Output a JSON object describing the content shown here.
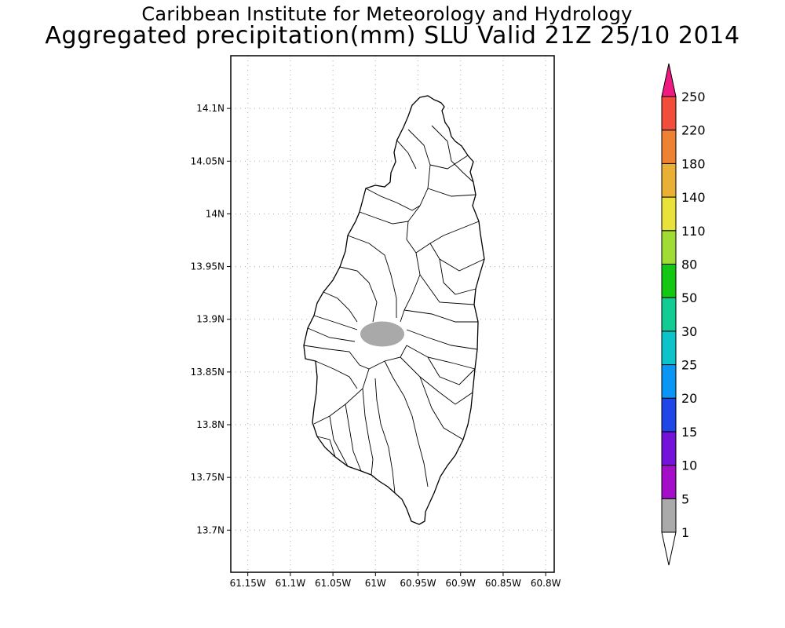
{
  "title": {
    "line1": "Caribbean Institute for Meteorology and Hydrology",
    "line2": "Aggregated precipitation(mm) SLU Valid 21Z 25/10 2014"
  },
  "map": {
    "lon_range": [
      -61.17,
      -60.79
    ],
    "lat_range": [
      13.66,
      14.15
    ],
    "x_ticks": [
      {
        "value": -61.15,
        "label": "61.15W"
      },
      {
        "value": -61.1,
        "label": "61.1W"
      },
      {
        "value": -61.05,
        "label": "61.05W"
      },
      {
        "value": -61.0,
        "label": "61W"
      },
      {
        "value": -60.95,
        "label": "60.95W"
      },
      {
        "value": -60.9,
        "label": "60.9W"
      },
      {
        "value": -60.85,
        "label": "60.85W"
      },
      {
        "value": -60.8,
        "label": "60.8W"
      }
    ],
    "y_ticks": [
      {
        "value": 14.1,
        "label": "14.1N"
      },
      {
        "value": 14.05,
        "label": "14.05N"
      },
      {
        "value": 14.0,
        "label": "14N"
      },
      {
        "value": 13.95,
        "label": "13.95N"
      },
      {
        "value": 13.9,
        "label": "13.9N"
      },
      {
        "value": 13.85,
        "label": "13.85N"
      },
      {
        "value": 13.8,
        "label": "13.8N"
      },
      {
        "value": 13.75,
        "label": "13.75N"
      },
      {
        "value": 13.7,
        "label": "13.7N"
      }
    ],
    "grid": "dotted",
    "rain_area": {
      "center_lon": -60.992,
      "center_lat": 13.886,
      "range_mm": "1-5",
      "color": "#a9a9a9"
    },
    "colors": {
      "outline": "#000000",
      "grid": "#aaaaaa"
    }
  },
  "colorbar": {
    "bounds": [
      "1",
      "5",
      "10",
      "15",
      "20",
      "25",
      "30",
      "50",
      "80",
      "110",
      "140",
      "180",
      "220",
      "250"
    ],
    "colors": [
      "#ffffff",
      "#aaaaaa",
      "#a40ec8",
      "#7312d8",
      "#1f46e7",
      "#0a96f5",
      "#0bc3c8",
      "#12cc94",
      "#13c713",
      "#a0dc33",
      "#e8e23a",
      "#e8b035",
      "#ef8232",
      "#f24d3a",
      "#ee1a82"
    ]
  }
}
